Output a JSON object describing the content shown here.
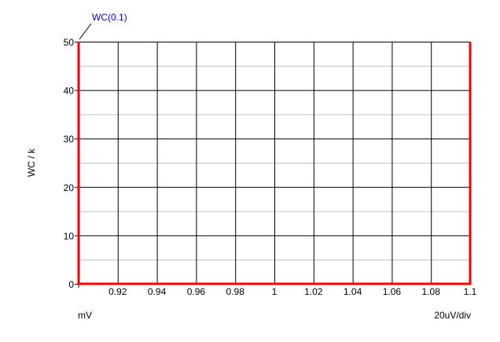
{
  "chart_data": {
    "type": "line",
    "ylabel": "WC / k",
    "x_unit_label": "mV",
    "x_scale_label": "20uV/div",
    "xlim": [
      0.9,
      1.1
    ],
    "ylim": [
      0,
      50
    ],
    "x_ticks": [
      0.92,
      0.94,
      0.96,
      0.98,
      1,
      1.02,
      1.04,
      1.06,
      1.08,
      1.1
    ],
    "x_tick_labels": [
      "0.92",
      "0.94",
      "0.96",
      "0.98",
      "1",
      "1.02",
      "1.04",
      "1.06",
      "1.08",
      "1.1"
    ],
    "y_ticks": [
      0,
      10,
      20,
      30,
      40,
      50
    ],
    "y_tick_labels": [
      "0",
      "10",
      "20",
      "30",
      "40",
      "50"
    ],
    "y_minor_ticks": [
      5,
      15,
      25,
      35,
      45
    ],
    "grid": true,
    "series": [
      {
        "name": "WC(0.1)",
        "color": "#ff0000",
        "x": [
          0.9,
          0.9,
          1.1,
          1.1
        ],
        "y": [
          50,
          0,
          0,
          50
        ]
      }
    ],
    "annotation": {
      "text": "WC(0.1)",
      "color": "#0000ff",
      "x": 0.9,
      "y": 50
    }
  }
}
